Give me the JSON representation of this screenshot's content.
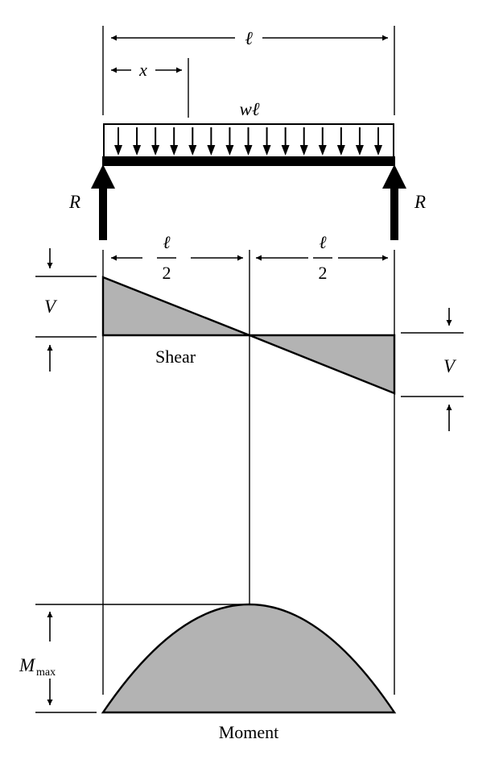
{
  "labels": {
    "span": "ℓ",
    "x": "x",
    "load": "wℓ",
    "reaction_left": "R",
    "reaction_right": "R",
    "half_num_left": "ℓ",
    "half_den_left": "2",
    "half_num_right": "ℓ",
    "half_den_right": "2",
    "shear_left": "V",
    "shear_right": "V",
    "shear_caption": "Shear",
    "moment_max_main": "M",
    "moment_max_sub": "max",
    "moment_caption": "Moment"
  },
  "colors": {
    "line": "#000000",
    "diagram_fill": "#b3b3b3",
    "background": "#ffffff"
  }
}
